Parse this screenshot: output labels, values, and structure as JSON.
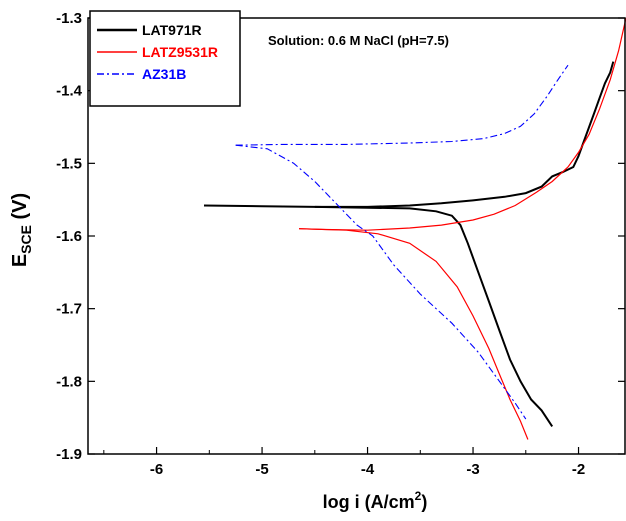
{
  "chart_data": {
    "type": "line",
    "xlabel": "log i (A/cm",
    "xlabel_sup": "2",
    "xlabel_end": ")",
    "ylabel_main": "E",
    "ylabel_sub": "SCE",
    "ylabel_end": " (V)",
    "xlim": [
      -6.65,
      -1.55
    ],
    "ylim": [
      -1.9,
      -1.3
    ],
    "x_ticks": [
      -6,
      -5,
      -4,
      -3,
      -2
    ],
    "x_tick_labels": [
      "-6",
      "-5",
      "-4",
      "-3",
      "-2"
    ],
    "y_ticks": [
      -1.9,
      -1.8,
      -1.7,
      -1.6,
      -1.5,
      -1.4,
      -1.3
    ],
    "y_tick_labels": [
      "-1.9",
      "-1.8",
      "-1.7",
      "-1.6",
      "-1.5",
      "-1.4",
      "-1.3"
    ],
    "annotation": "Solution: 0.6 M NaCl (pH=7.5)",
    "legend_position": "top-left",
    "grid": false,
    "series": [
      {
        "name": "LAT971R",
        "color": "#000000",
        "style": "solid",
        "segments": [
          [
            [
              -5.55,
              -1.558
            ],
            [
              -5.0,
              -1.559
            ],
            [
              -4.5,
              -1.56
            ],
            [
              -4.0,
              -1.56
            ],
            [
              -3.6,
              -1.558
            ],
            [
              -3.3,
              -1.555
            ],
            [
              -3.0,
              -1.551
            ],
            [
              -2.7,
              -1.546
            ],
            [
              -2.5,
              -1.541
            ],
            [
              -2.35,
              -1.532
            ],
            [
              -2.25,
              -1.518
            ],
            [
              -2.15,
              -1.512
            ],
            [
              -2.05,
              -1.505
            ],
            [
              -2.0,
              -1.49
            ],
            [
              -1.95,
              -1.47
            ],
            [
              -1.9,
              -1.45
            ],
            [
              -1.85,
              -1.43
            ],
            [
              -1.8,
              -1.41
            ],
            [
              -1.75,
              -1.39
            ],
            [
              -1.7,
              -1.375
            ],
            [
              -1.67,
              -1.36
            ]
          ],
          [
            [
              -4.5,
              -1.56
            ],
            [
              -4.0,
              -1.561
            ],
            [
              -3.6,
              -1.562
            ],
            [
              -3.35,
              -1.566
            ],
            [
              -3.2,
              -1.572
            ],
            [
              -3.12,
              -1.585
            ],
            [
              -3.05,
              -1.61
            ],
            [
              -2.95,
              -1.65
            ],
            [
              -2.85,
              -1.69
            ],
            [
              -2.75,
              -1.73
            ],
            [
              -2.65,
              -1.77
            ],
            [
              -2.55,
              -1.8
            ],
            [
              -2.45,
              -1.825
            ],
            [
              -2.35,
              -1.84
            ],
            [
              -2.25,
              -1.862
            ]
          ]
        ]
      },
      {
        "name": "LATZ9531R",
        "color": "#ff0000",
        "style": "solid",
        "segments": [
          [
            [
              -4.65,
              -1.59
            ],
            [
              -4.4,
              -1.591
            ],
            [
              -4.0,
              -1.592
            ],
            [
              -3.6,
              -1.589
            ],
            [
              -3.3,
              -1.585
            ],
            [
              -3.0,
              -1.578
            ],
            [
              -2.8,
              -1.57
            ],
            [
              -2.6,
              -1.558
            ],
            [
              -2.4,
              -1.54
            ],
            [
              -2.25,
              -1.525
            ],
            [
              -2.1,
              -1.505
            ],
            [
              -2.0,
              -1.485
            ],
            [
              -1.9,
              -1.46
            ],
            [
              -1.8,
              -1.425
            ],
            [
              -1.7,
              -1.385
            ],
            [
              -1.62,
              -1.345
            ],
            [
              -1.55,
              -1.3
            ]
          ],
          [
            [
              -4.65,
              -1.59
            ],
            [
              -4.2,
              -1.592
            ],
            [
              -3.9,
              -1.597
            ],
            [
              -3.6,
              -1.61
            ],
            [
              -3.35,
              -1.635
            ],
            [
              -3.15,
              -1.67
            ],
            [
              -3.0,
              -1.71
            ],
            [
              -2.85,
              -1.755
            ],
            [
              -2.75,
              -1.79
            ],
            [
              -2.65,
              -1.825
            ],
            [
              -2.55,
              -1.855
            ],
            [
              -2.48,
              -1.88
            ]
          ]
        ]
      },
      {
        "name": "AZ31B",
        "color": "#0000ff",
        "style": "dashdot",
        "segments": [
          [
            [
              -5.25,
              -1.475
            ],
            [
              -4.8,
              -1.474
            ],
            [
              -4.2,
              -1.474
            ],
            [
              -3.6,
              -1.472
            ],
            [
              -3.2,
              -1.47
            ],
            [
              -2.9,
              -1.466
            ],
            [
              -2.7,
              -1.459
            ],
            [
              -2.55,
              -1.449
            ],
            [
              -2.42,
              -1.432
            ],
            [
              -2.3,
              -1.408
            ],
            [
              -2.2,
              -1.386
            ],
            [
              -2.1,
              -1.365
            ]
          ],
          [
            [
              -5.25,
              -1.475
            ],
            [
              -4.95,
              -1.48
            ],
            [
              -4.7,
              -1.5
            ],
            [
              -4.5,
              -1.525
            ],
            [
              -4.3,
              -1.555
            ],
            [
              -4.1,
              -1.585
            ],
            [
              -3.95,
              -1.6
            ],
            [
              -3.75,
              -1.64
            ],
            [
              -3.5,
              -1.68
            ],
            [
              -3.2,
              -1.72
            ],
            [
              -2.95,
              -1.76
            ],
            [
              -2.75,
              -1.8
            ],
            [
              -2.6,
              -1.83
            ],
            [
              -2.5,
              -1.852
            ]
          ]
        ]
      }
    ]
  }
}
